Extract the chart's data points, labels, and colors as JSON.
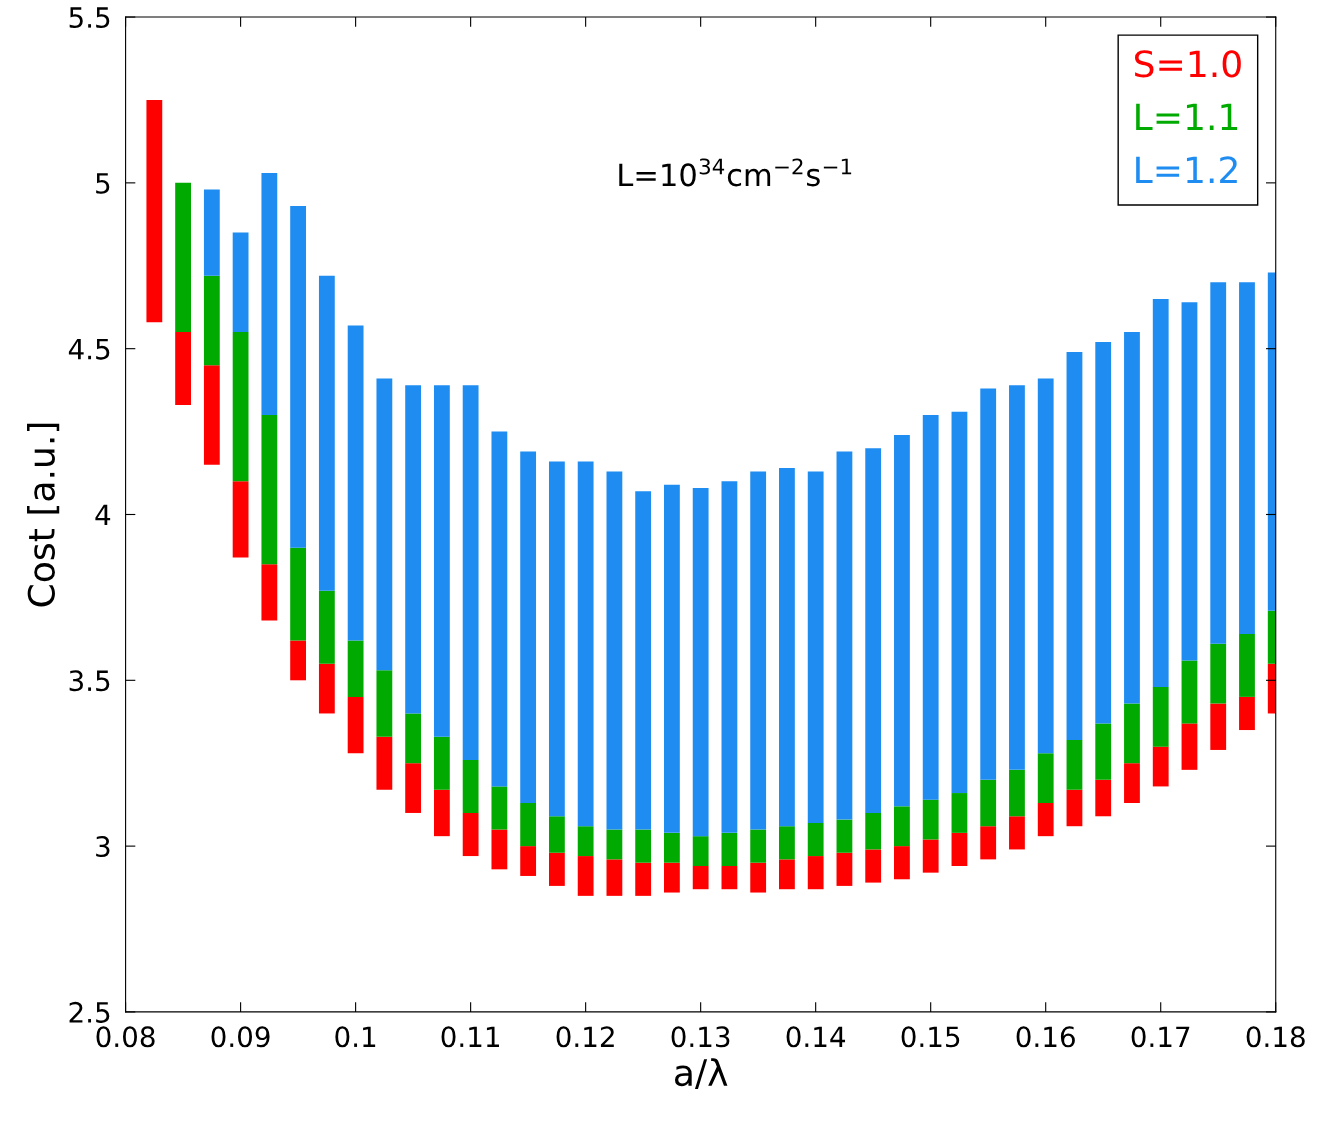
{
  "chart_data": {
    "type": "bar",
    "xlabel": "a/λ",
    "ylabel": "Cost [a.u.]",
    "annotations": [
      "L=10$^{34}$cm$^{−2}$s$^{−1}$"
    ],
    "x": [
      0.0825,
      0.085,
      0.0875,
      0.09,
      0.0925,
      0.095,
      0.0975,
      0.1,
      0.1025,
      0.105,
      0.1075,
      0.11,
      0.1125,
      0.115,
      0.1175,
      0.12,
      0.1225,
      0.125,
      0.1275,
      0.13,
      0.1325,
      0.135,
      0.1375,
      0.14,
      0.1425,
      0.145,
      0.1475,
      0.15,
      0.1525,
      0.155,
      0.1575,
      0.16,
      0.1625,
      0.165,
      0.1675,
      0.17,
      0.1725,
      0.175,
      0.1775,
      0.18
    ],
    "series": [
      {
        "name": "S=1.0",
        "color": "#ff0000",
        "base": [
          4.58,
          4.33,
          4.15,
          3.87,
          3.68,
          3.5,
          3.4,
          3.28,
          3.17,
          3.1,
          3.03,
          2.97,
          2.93,
          2.91,
          2.88,
          2.85,
          2.85,
          2.85,
          2.86,
          2.87,
          2.87,
          2.86,
          2.87,
          2.87,
          2.88,
          2.89,
          2.9,
          2.92,
          2.94,
          2.96,
          2.99,
          3.03,
          3.06,
          3.09,
          3.13,
          3.18,
          3.23,
          3.29,
          3.35,
          3.4
        ],
        "values": [
          0.67,
          0.22,
          0.3,
          0.23,
          0.17,
          0.12,
          0.15,
          0.17,
          0.16,
          0.15,
          0.14,
          0.13,
          0.12,
          0.09,
          0.1,
          0.12,
          0.11,
          0.1,
          0.09,
          0.07,
          0.07,
          0.09,
          0.09,
          0.1,
          0.1,
          0.1,
          0.1,
          0.1,
          0.1,
          0.1,
          0.1,
          0.1,
          0.11,
          0.11,
          0.12,
          0.12,
          0.14,
          0.14,
          0.1,
          0.15
        ]
      },
      {
        "name": "L=1.1",
        "color": "#00aa00",
        "base": [
          null,
          4.55,
          4.45,
          4.1,
          3.85,
          3.62,
          3.55,
          3.45,
          3.33,
          3.25,
          3.17,
          3.1,
          3.05,
          3.0,
          2.98,
          2.97,
          2.96,
          2.95,
          2.95,
          2.94,
          2.94,
          2.95,
          2.96,
          2.97,
          2.98,
          2.99,
          3.0,
          3.02,
          3.04,
          3.06,
          3.09,
          3.13,
          3.17,
          3.2,
          3.25,
          3.3,
          3.37,
          3.43,
          3.45,
          3.55
        ],
        "values": [
          null,
          0.45,
          0.27,
          0.45,
          0.45,
          0.28,
          0.22,
          0.17,
          0.2,
          0.15,
          0.16,
          0.16,
          0.13,
          0.13,
          0.11,
          0.09,
          0.09,
          0.1,
          0.09,
          0.09,
          0.1,
          0.1,
          0.1,
          0.1,
          0.1,
          0.11,
          0.12,
          0.12,
          0.12,
          0.14,
          0.14,
          0.15,
          0.15,
          0.17,
          0.18,
          0.18,
          0.19,
          0.18,
          0.19,
          0.16
        ]
      },
      {
        "name": "L=1.2",
        "color": "#1e8cf0",
        "base": [
          null,
          null,
          4.72,
          4.55,
          4.3,
          3.9,
          3.77,
          3.62,
          3.53,
          3.4,
          3.33,
          3.26,
          3.18,
          3.13,
          3.09,
          3.06,
          3.05,
          3.05,
          3.04,
          3.03,
          3.04,
          3.05,
          3.06,
          3.07,
          3.08,
          3.1,
          3.12,
          3.14,
          3.16,
          3.2,
          3.23,
          3.28,
          3.32,
          3.37,
          3.43,
          3.48,
          3.56,
          3.61,
          3.64,
          3.71
        ],
        "values": [
          null,
          null,
          0.26,
          0.3,
          0.73,
          1.03,
          0.95,
          0.95,
          0.88,
          0.99,
          1.06,
          1.13,
          1.07,
          1.06,
          1.07,
          1.1,
          1.08,
          1.02,
          1.05,
          1.05,
          1.06,
          1.08,
          1.08,
          1.06,
          1.11,
          1.1,
          1.12,
          1.16,
          1.15,
          1.18,
          1.16,
          1.13,
          1.17,
          1.15,
          1.12,
          1.17,
          1.08,
          1.09,
          1.06,
          1.02
        ]
      }
    ],
    "xlim": [
      0.08,
      0.18
    ],
    "xticks": [
      0.08,
      0.09,
      0.1,
      0.11,
      0.12,
      0.13,
      0.14,
      0.15,
      0.16,
      0.17,
      0.18
    ],
    "ylim": [
      2.5,
      5.5
    ],
    "yticks": [
      2.5,
      3,
      3.5,
      4,
      4.5,
      5,
      5.5
    ],
    "legend": "top right",
    "grid": false
  }
}
